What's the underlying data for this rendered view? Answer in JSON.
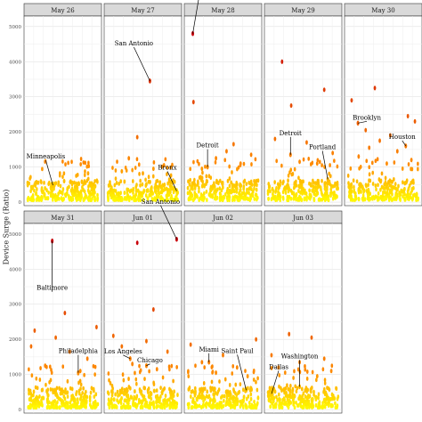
{
  "figure": {
    "ylabel": "Device Surge (Ratio)"
  },
  "chart_data": {
    "type": "scatter",
    "ylabel": "Device Surge (Ratio)",
    "ylim": [
      -100,
      5300
    ],
    "yticks": [
      0,
      1000,
      2000,
      3000,
      4000,
      5000
    ],
    "color_scale": {
      "low": "#ffff00",
      "mid": "#ff8c00",
      "high": "#c8000a"
    },
    "panels": [
      {
        "title": "May 26",
        "annotations": [
          {
            "label": "Minneapolis",
            "value": 480,
            "x": 0.36
          }
        ],
        "points": [
          [
            0.86,
            820
          ],
          [
            0.52,
            600
          ],
          [
            0.1,
            500
          ],
          [
            0.3,
            520
          ],
          [
            0.7,
            480
          ],
          [
            0.44,
            560
          ]
        ]
      },
      {
        "title": "May 27",
        "annotations": [
          {
            "label": "San Antonio",
            "value": 3450,
            "x": 0.6
          },
          {
            "label": "Bronx",
            "value": 320,
            "x": 0.98
          }
        ],
        "points": [
          [
            0.42,
            1850
          ],
          [
            0.3,
            1250
          ],
          [
            0.8,
            1050
          ],
          [
            0.65,
            950
          ],
          [
            0.2,
            880
          ],
          [
            0.5,
            820
          ],
          [
            0.9,
            760
          ]
        ]
      },
      {
        "title": "May 28",
        "annotations": [
          {
            "label": "San Antonio",
            "value": 4800,
            "x": 0.07
          },
          {
            "label": "Detroit",
            "value": 1000,
            "x": 0.28
          }
        ],
        "points": [
          [
            0.08,
            2850
          ],
          [
            0.65,
            1650
          ],
          [
            0.55,
            1450
          ],
          [
            0.9,
            1350
          ],
          [
            0.4,
            1250
          ],
          [
            0.75,
            1100
          ],
          [
            0.2,
            950
          ]
        ]
      },
      {
        "title": "May 29",
        "annotations": [
          {
            "label": "Detroit",
            "value": 1350,
            "x": 0.32
          },
          {
            "label": "Portland",
            "value": 650,
            "x": 0.85
          }
        ],
        "points": [
          [
            0.2,
            4000
          ],
          [
            0.8,
            3200
          ],
          [
            0.33,
            2750
          ],
          [
            0.1,
            1800
          ],
          [
            0.55,
            1700
          ],
          [
            0.92,
            1400
          ],
          [
            0.45,
            1150
          ],
          [
            0.7,
            1100
          ]
        ]
      },
      {
        "title": "May 30",
        "annotations": [
          {
            "label": "Brooklyn",
            "value": 2250,
            "x": 0.14
          },
          {
            "label": "Houston",
            "value": 1600,
            "x": 0.82
          }
        ],
        "points": [
          [
            0.05,
            2900
          ],
          [
            0.38,
            3250
          ],
          [
            0.85,
            2450
          ],
          [
            0.95,
            2300
          ],
          [
            0.25,
            2050
          ],
          [
            0.6,
            1900
          ],
          [
            0.45,
            1750
          ],
          [
            0.3,
            1550
          ],
          [
            0.7,
            1450
          ],
          [
            0.15,
            1300
          ],
          [
            0.9,
            1200
          ],
          [
            0.55,
            1100
          ]
        ]
      },
      {
        "title": "May 31",
        "annotations": [
          {
            "label": "Baltimore",
            "value": 4800,
            "x": 0.35
          },
          {
            "label": "Philadelphia",
            "value": 1050,
            "x": 0.72
          }
        ],
        "points": [
          [
            0.53,
            2750
          ],
          [
            0.1,
            2250
          ],
          [
            0.98,
            2350
          ],
          [
            0.4,
            2050
          ],
          [
            0.05,
            1800
          ],
          [
            0.6,
            1650
          ],
          [
            0.85,
            1450
          ],
          [
            0.25,
            1250
          ],
          [
            0.75,
            1100
          ]
        ]
      },
      {
        "title": "Jun 01",
        "annotations": [
          {
            "label": "San Antonio",
            "value": 4850,
            "x": 0.98
          },
          {
            "label": "Los Angeles",
            "value": 1450,
            "x": 0.32
          },
          {
            "label": "Chicago",
            "value": 1250,
            "x": 0.55
          }
        ],
        "points": [
          [
            0.42,
            4750
          ],
          [
            0.65,
            2850
          ],
          [
            0.08,
            2100
          ],
          [
            0.55,
            1950
          ],
          [
            0.2,
            1800
          ],
          [
            0.85,
            1650
          ],
          [
            0.35,
            1300
          ],
          [
            0.7,
            1150
          ]
        ]
      },
      {
        "title": "Jun 02",
        "annotations": [
          {
            "label": "Miami",
            "value": 1350,
            "x": 0.3
          },
          {
            "label": "Saint Paul",
            "value": 550,
            "x": 0.83
          }
        ],
        "points": [
          [
            0.04,
            1850
          ],
          [
            0.97,
            2000
          ],
          [
            0.5,
            1550
          ],
          [
            0.2,
            1350
          ],
          [
            0.7,
            1200
          ],
          [
            0.4,
            1050
          ],
          [
            0.85,
            950
          ]
        ]
      },
      {
        "title": "Jun 03",
        "annotations": [
          {
            "label": "Dallas",
            "value": 450,
            "x": 0.05
          },
          {
            "label": "Washington",
            "value": 650,
            "x": 0.45
          }
        ],
        "points": [
          [
            0.3,
            2150
          ],
          [
            0.62,
            2050
          ],
          [
            0.05,
            1550
          ],
          [
            0.8,
            1450
          ],
          [
            0.45,
            1350
          ],
          [
            0.15,
            1200
          ],
          [
            0.9,
            1100
          ],
          [
            0.7,
            950
          ]
        ]
      }
    ]
  }
}
